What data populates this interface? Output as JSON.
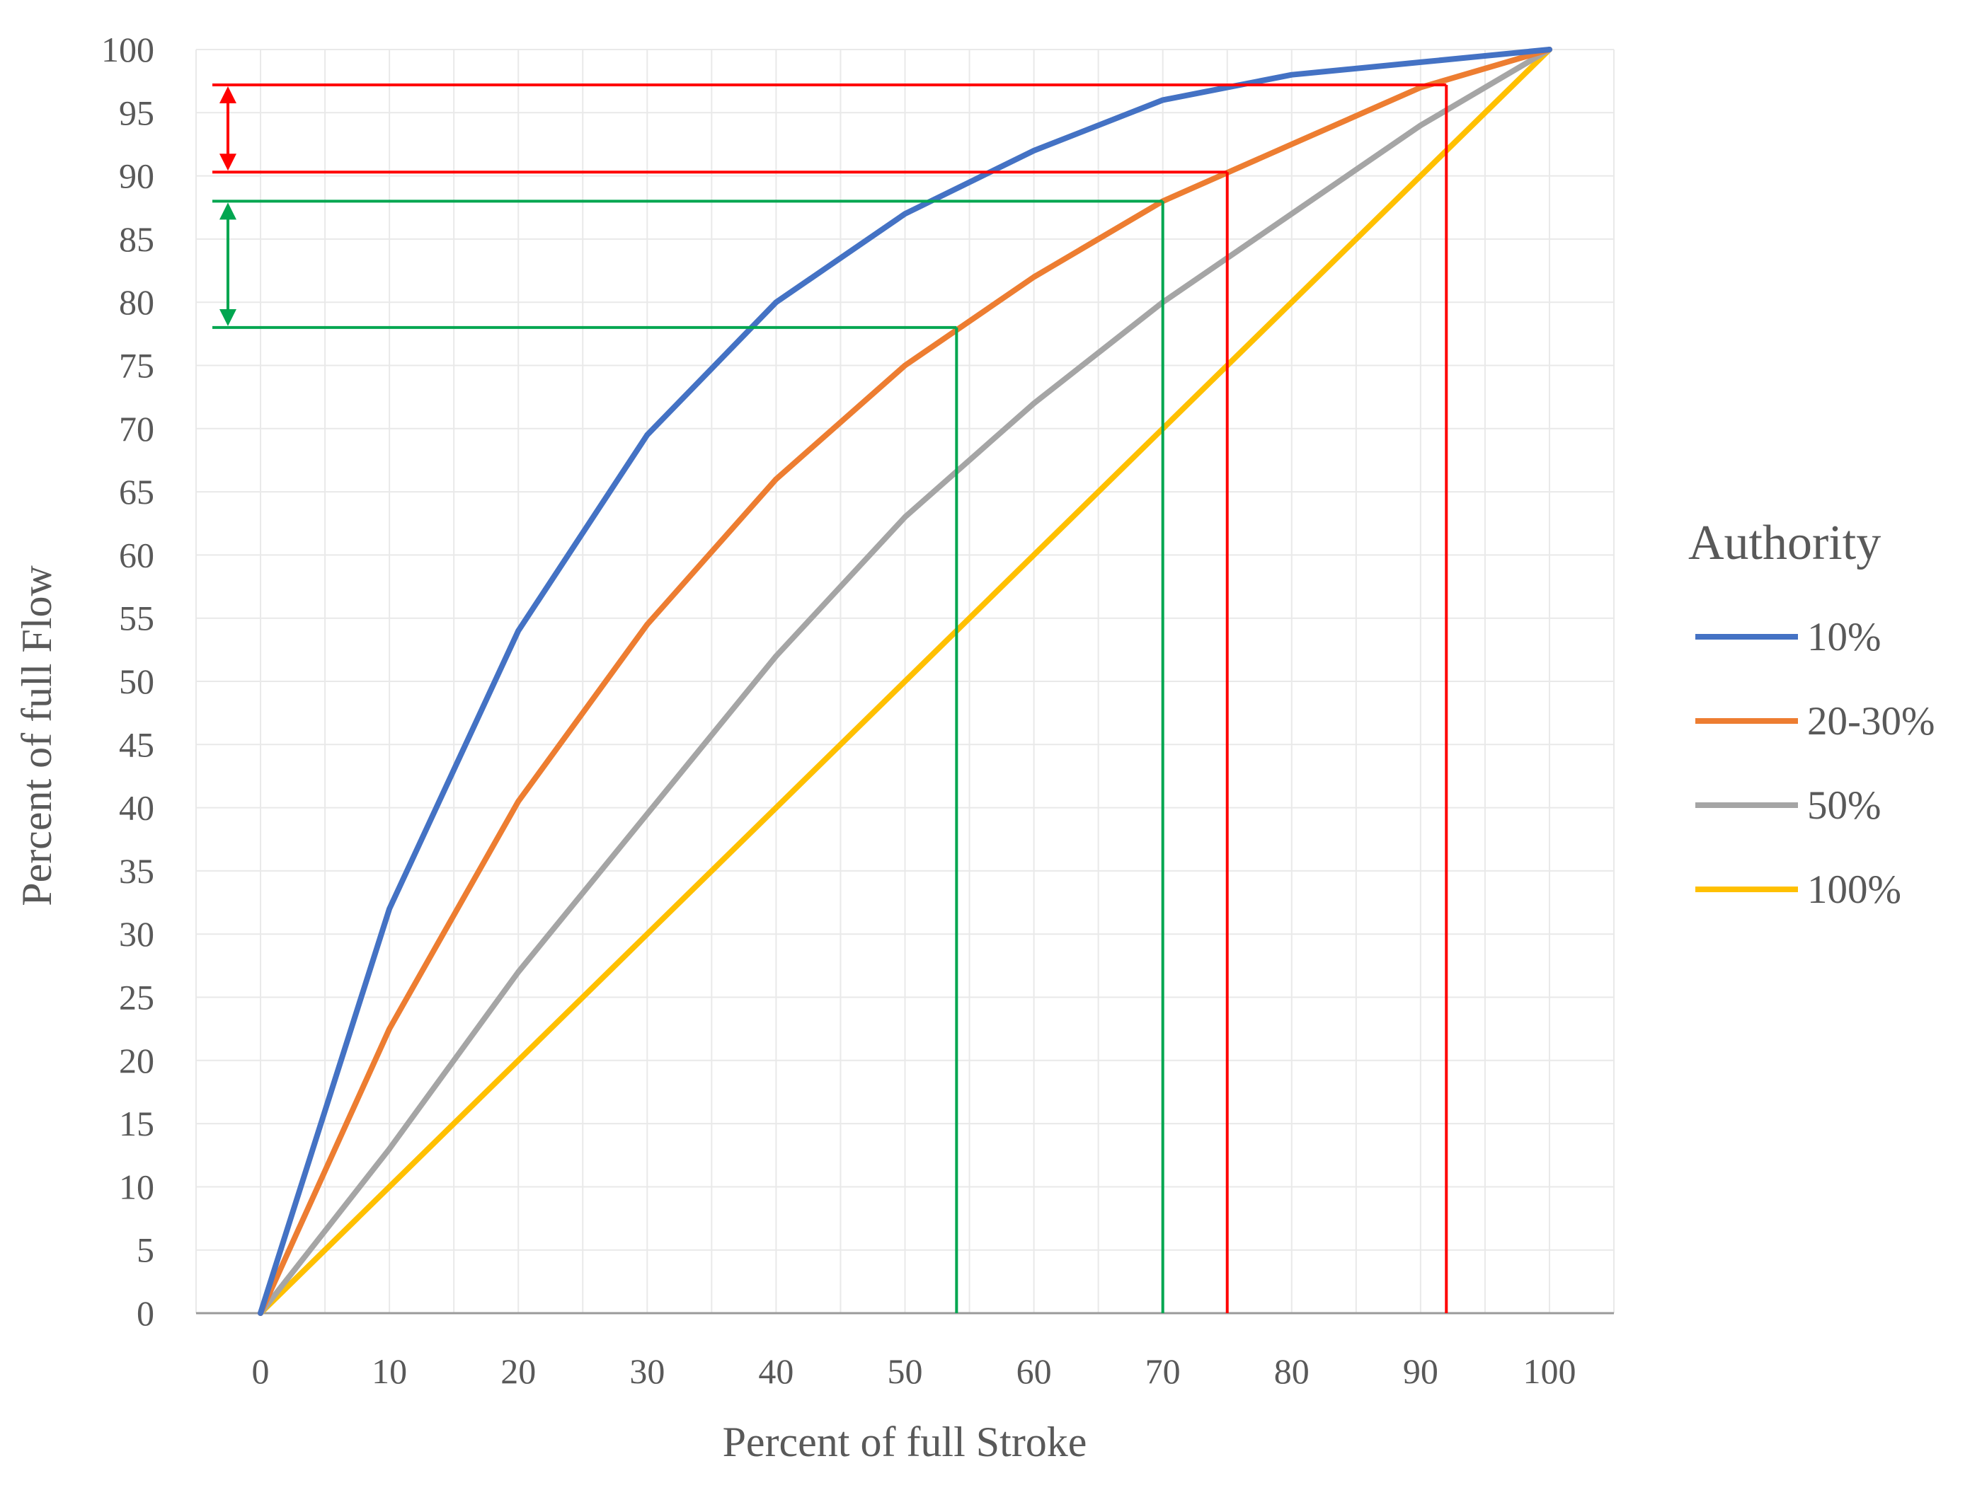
{
  "chart_data": {
    "type": "line",
    "xlabel": "Percent of full Stroke",
    "ylabel": "Percent of full Flow",
    "xlim": [
      -5,
      105
    ],
    "ylim": [
      0,
      100
    ],
    "x_ticks": [
      "0",
      "10",
      "20",
      "30",
      "40",
      "50",
      "60",
      "70",
      "80",
      "90",
      "100"
    ],
    "y_ticks": [
      "0",
      "5",
      "10",
      "15",
      "20",
      "25",
      "30",
      "35",
      "40",
      "45",
      "50",
      "55",
      "60",
      "65",
      "70",
      "75",
      "80",
      "85",
      "90",
      "95",
      "100"
    ],
    "grid": true,
    "x": [
      0,
      10,
      20,
      30,
      40,
      50,
      60,
      70,
      80,
      90,
      100
    ],
    "legend": {
      "title": "Authority",
      "placement": "right"
    },
    "series": [
      {
        "name": "10%",
        "color": "#4472C4",
        "values": [
          0,
          32,
          54,
          69.5,
          80,
          87,
          92,
          96,
          98,
          99,
          100
        ]
      },
      {
        "name": "20-30%",
        "color": "#ED7D31",
        "values": [
          0,
          22.5,
          40.5,
          54.5,
          66,
          75,
          82,
          88,
          92.5,
          97,
          100
        ]
      },
      {
        "name": "50%",
        "color": "#A5A5A5",
        "values": [
          0,
          13,
          27,
          39.5,
          52,
          63,
          72,
          80,
          87,
          94,
          100
        ]
      },
      {
        "name": "100%",
        "color": "#FFC000",
        "values": [
          0,
          10,
          20,
          30,
          40,
          50,
          60,
          70,
          80,
          90,
          100
        ]
      }
    ],
    "annotations": {
      "red": {
        "color": "#FF0000",
        "vertical_x": [
          75,
          92
        ],
        "horizontal_y": [
          90.3,
          97.2
        ],
        "arrow_between_y": [
          90.3,
          97.2
        ]
      },
      "green": {
        "color": "#00A650",
        "vertical_x": [
          54,
          70
        ],
        "horizontal_y": [
          78,
          88
        ],
        "arrow_between_y": [
          78,
          88
        ]
      }
    }
  }
}
